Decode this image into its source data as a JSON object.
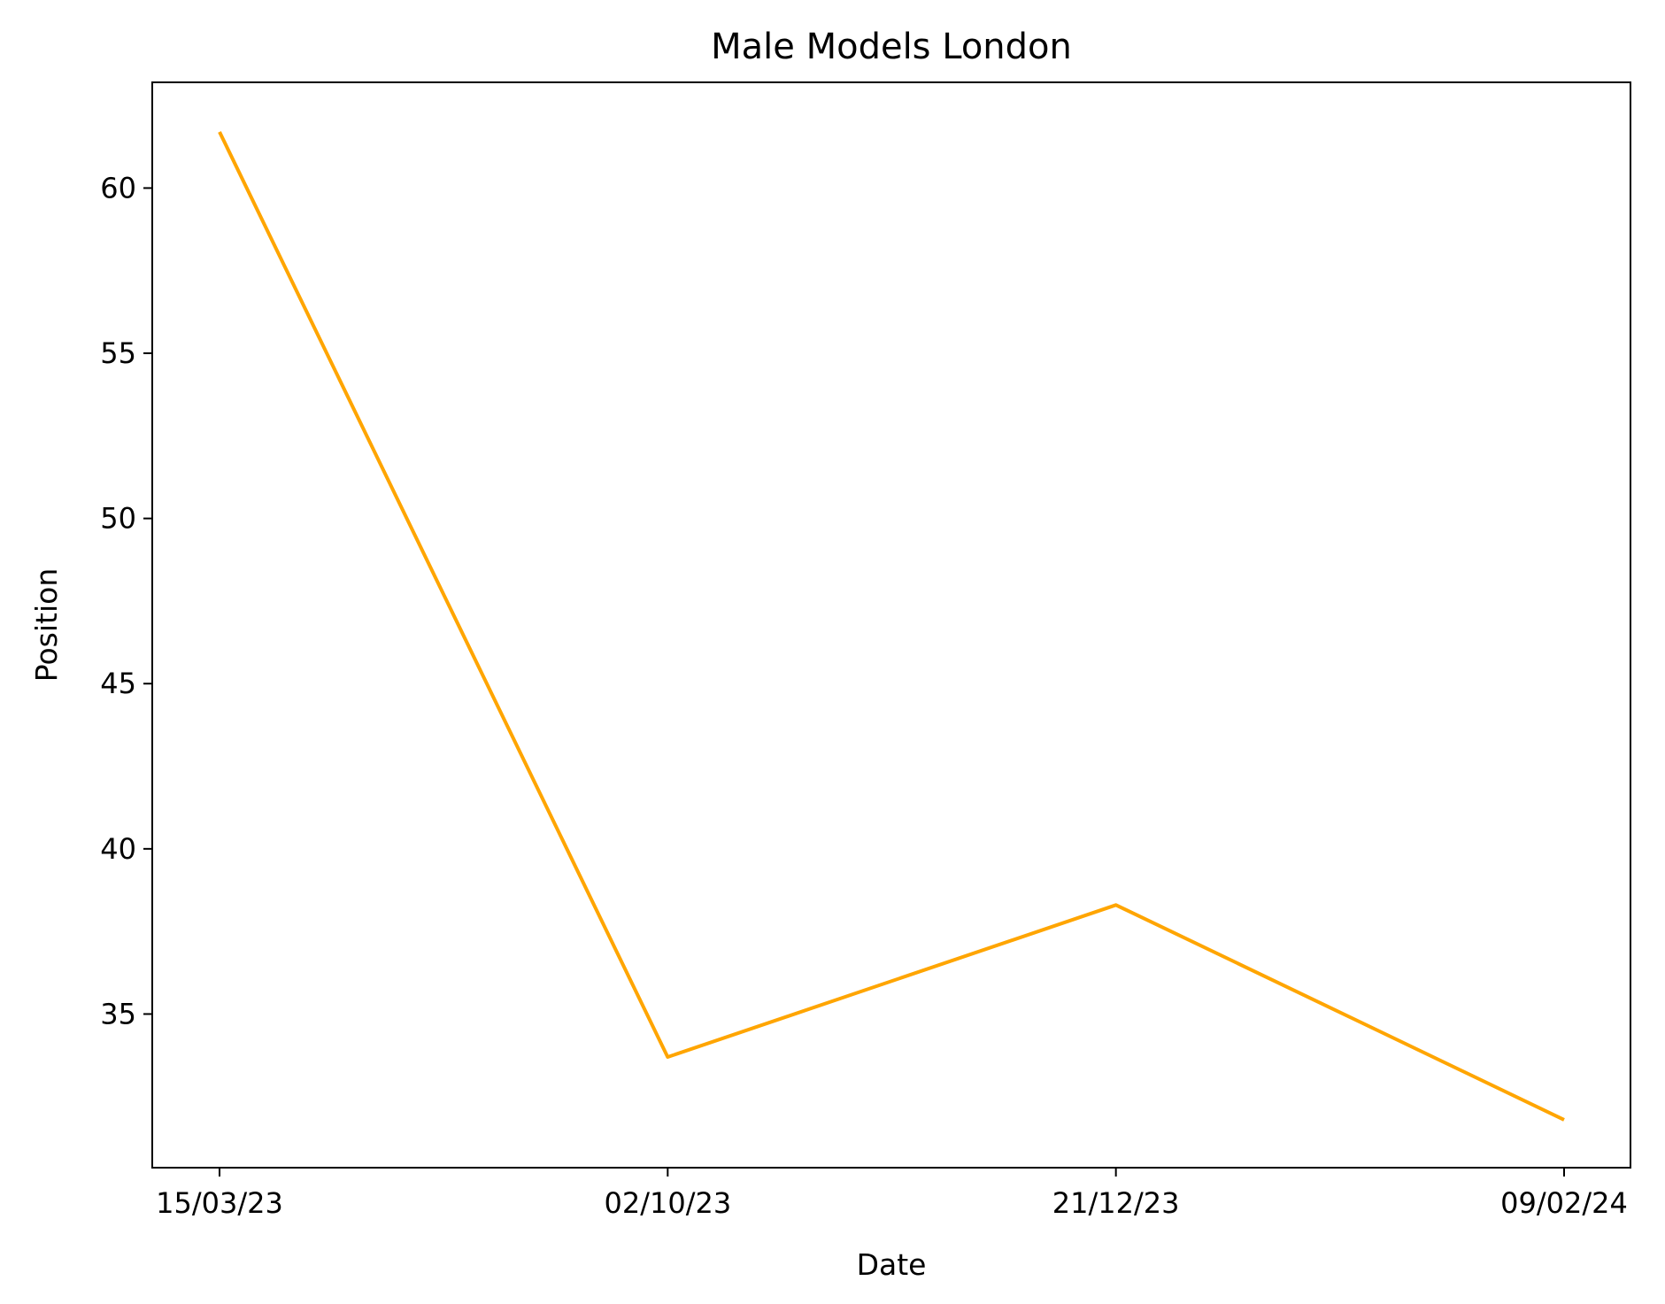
{
  "chart_data": {
    "type": "line",
    "title": "Male Models London",
    "xlabel": "Date",
    "ylabel": "Position",
    "categories": [
      "15/03/23",
      "02/10/23",
      "21/12/23",
      "09/02/24"
    ],
    "values": [
      61.7,
      33.7,
      38.3,
      31.8
    ],
    "ylim": [
      30.35,
      63.2
    ],
    "yticks": [
      35,
      40,
      45,
      50,
      55,
      60
    ],
    "grid": false,
    "legend": "none",
    "line_color": "#ffa500"
  }
}
